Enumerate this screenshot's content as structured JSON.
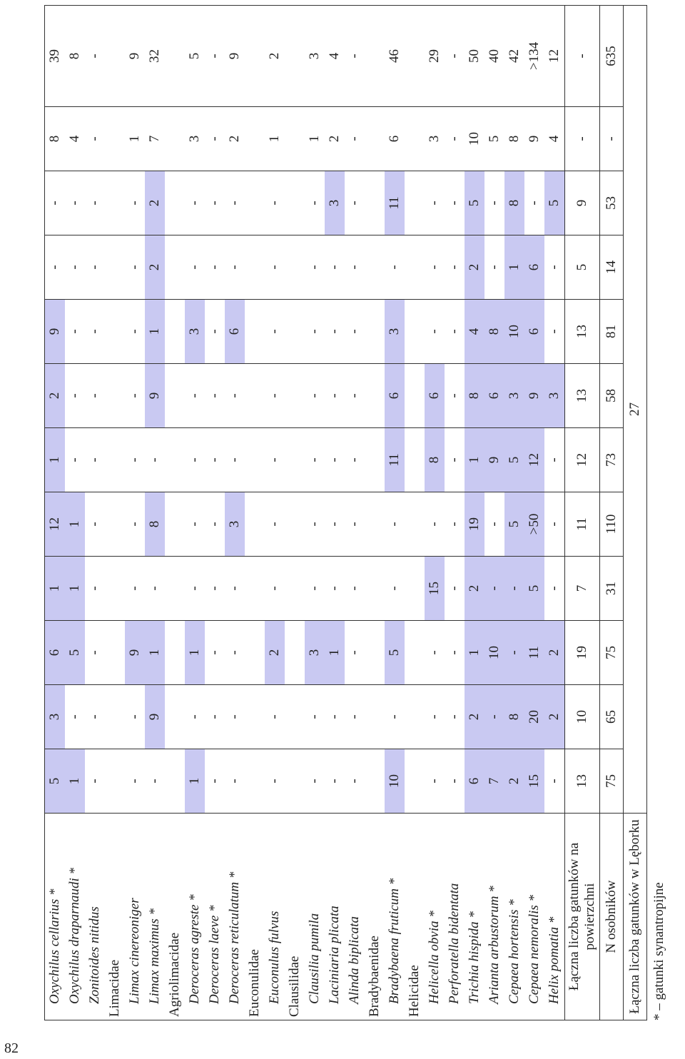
{
  "table": {
    "rows": [
      {
        "species": "Oxychilus cellarius *",
        "cells": [
          5,
          3,
          6,
          1,
          12,
          1,
          2,
          9,
          "-",
          "-",
          8,
          39
        ]
      },
      {
        "species": "Oxychilus draparnaudi *",
        "cells": [
          1,
          "-",
          5,
          1,
          1,
          "-",
          "-",
          "-",
          "-",
          "-",
          4,
          8
        ]
      },
      {
        "species": "Zonitoides nitidus",
        "cells": [
          "-",
          "-",
          "-",
          "-",
          "-",
          "-",
          "-",
          "-",
          "-",
          "-",
          "-",
          "-"
        ]
      },
      {
        "family": "Limacidae"
      },
      {
        "species": "Limax cinereoniger",
        "cells": [
          "-",
          "-",
          9,
          "-",
          "-",
          "-",
          "-",
          "-",
          "-",
          "-",
          1,
          9
        ]
      },
      {
        "species": "Limax maximus *",
        "cells": [
          "-",
          9,
          1,
          "-",
          8,
          "-",
          9,
          1,
          2,
          2,
          7,
          32
        ]
      },
      {
        "family": "Agriolimacidae"
      },
      {
        "species": "Deroceras agreste *",
        "cells": [
          1,
          "-",
          1,
          "-",
          "-",
          "-",
          "-",
          3,
          "-",
          "-",
          3,
          5
        ]
      },
      {
        "species": "Deroceras laeve *",
        "cells": [
          "-",
          "-",
          "-",
          "-",
          "-",
          "-",
          "-",
          "-",
          "-",
          "-",
          "-",
          "-"
        ]
      },
      {
        "species": "Deroceras reticulatum *",
        "cells": [
          "-",
          "-",
          "-",
          "-",
          3,
          "-",
          "-",
          6,
          "-",
          "-",
          2,
          9
        ]
      },
      {
        "family": "Euconulidae"
      },
      {
        "species": "Euconulus fulvus",
        "cells": [
          "-",
          "-",
          2,
          "-",
          "-",
          "-",
          "-",
          "-",
          "-",
          "-",
          1,
          2
        ]
      },
      {
        "family": "Clausilidae"
      },
      {
        "species": "Clausilia pumila",
        "cells": [
          "-",
          "-",
          3,
          "-",
          "-",
          "-",
          "-",
          "-",
          "-",
          "-",
          1,
          3
        ]
      },
      {
        "species": "Laciniaria plicata",
        "cells": [
          "-",
          "-",
          1,
          "-",
          "-",
          "-",
          "-",
          "-",
          "-",
          3,
          2,
          4
        ]
      },
      {
        "species": "Alinda biplicata",
        "cells": [
          "-",
          "-",
          "-",
          "-",
          "-",
          "-",
          "-",
          "-",
          "-",
          "-",
          "-",
          "-"
        ]
      },
      {
        "family": "Bradybaenidae"
      },
      {
        "species": "Bradybaena fruticum *",
        "cells": [
          10,
          "-",
          5,
          "-",
          "-",
          11,
          6,
          3,
          "-",
          11,
          6,
          46
        ]
      },
      {
        "family": "Helicidae"
      },
      {
        "species": "Helicella obvia *",
        "cells": [
          "-",
          "-",
          "-",
          15,
          "-",
          8,
          6,
          "-",
          "-",
          "-",
          3,
          29
        ]
      },
      {
        "species": "Perforatella bidentata",
        "cells": [
          "-",
          "-",
          "-",
          "-",
          "-",
          "-",
          "-",
          "-",
          "-",
          "-",
          "-",
          "-"
        ]
      },
      {
        "species": "Trichia hispida *",
        "cells": [
          6,
          2,
          1,
          2,
          19,
          1,
          8,
          4,
          2,
          5,
          10,
          50
        ]
      },
      {
        "species": "Arianta arbustorum *",
        "cells": [
          7,
          "-",
          10,
          "-",
          "-",
          9,
          6,
          8,
          "-",
          "-",
          5,
          40
        ]
      },
      {
        "species": "Cepaea hortensis *",
        "cells": [
          2,
          8,
          "-",
          "-",
          5,
          5,
          3,
          10,
          1,
          8,
          8,
          42
        ]
      },
      {
        "species": "Cepaea nemoralis *",
        "cells": [
          15,
          20,
          11,
          5,
          ">50",
          12,
          9,
          6,
          6,
          "-",
          9,
          ">134"
        ]
      },
      {
        "species": "Helix pomatia *",
        "cells": [
          "-",
          2,
          2,
          "-",
          "-",
          "-",
          3,
          "-",
          "-",
          5,
          4,
          12
        ]
      },
      {
        "label": "Łączna liczba gatunków na powierzchni",
        "cells": [
          13,
          10,
          19,
          7,
          11,
          12,
          13,
          13,
          5,
          9,
          "-",
          "-"
        ]
      },
      {
        "label": "N osobników",
        "cells": [
          75,
          65,
          75,
          31,
          110,
          73,
          58,
          81,
          14,
          53,
          "-",
          635
        ]
      },
      {
        "label": "Łączna liczba gatunków w Lęborku",
        "cells": [
          27
        ]
      }
    ],
    "footnote": "* – gatunki synantropijne",
    "page_number": "82"
  }
}
